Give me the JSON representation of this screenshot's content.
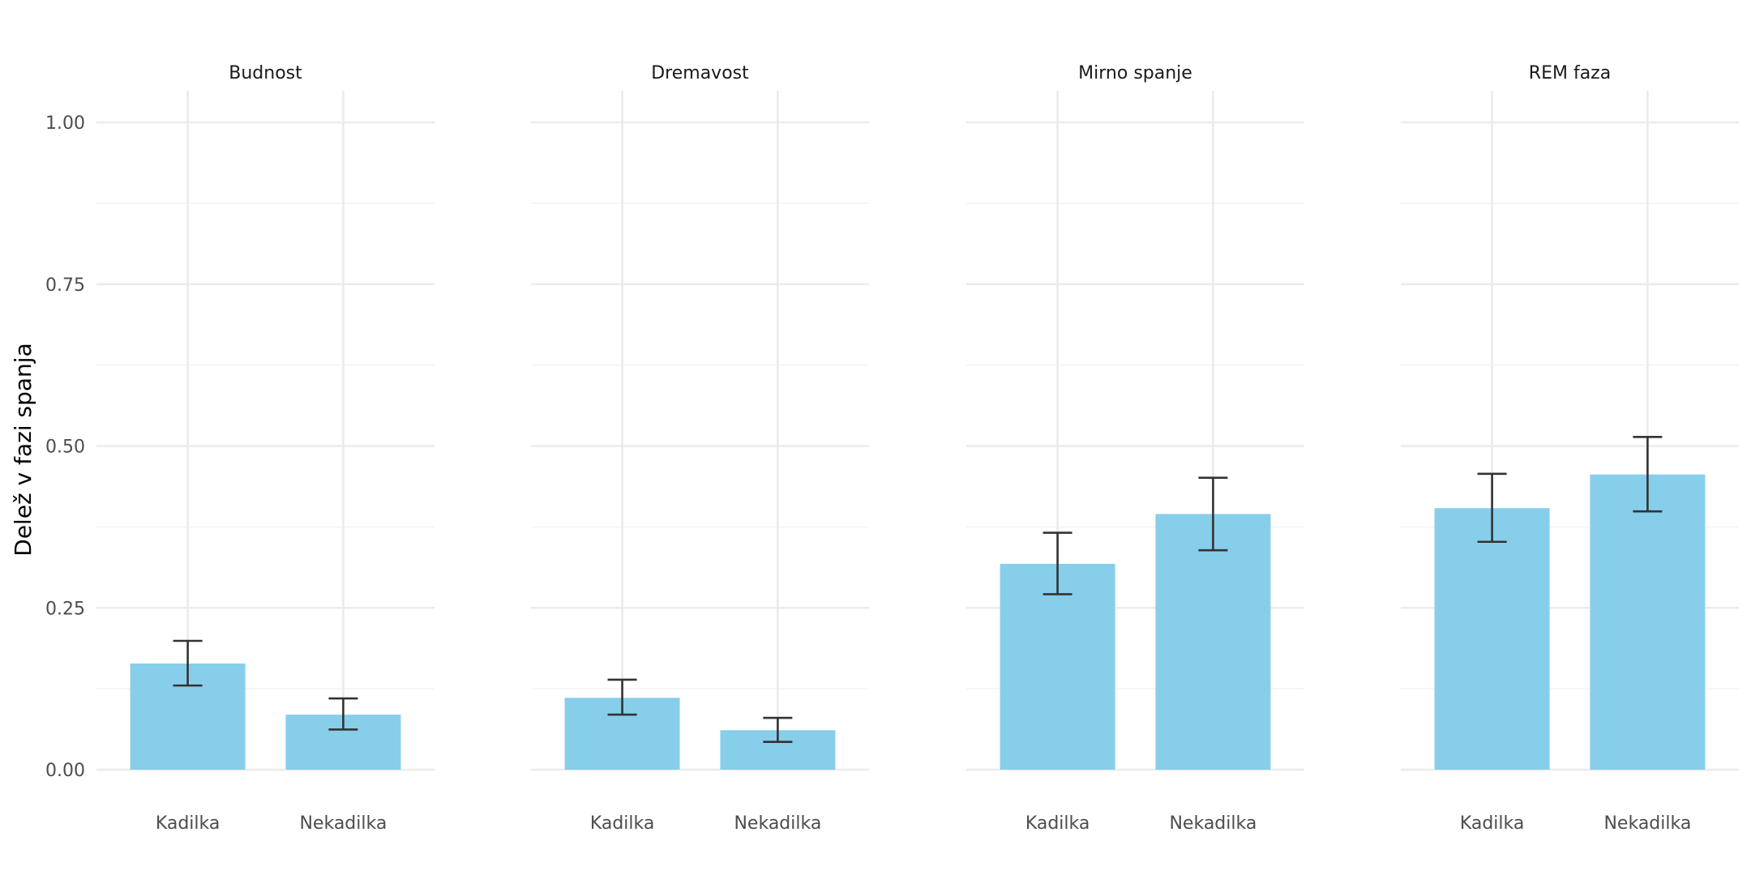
{
  "chart_data": {
    "type": "bar",
    "ylabel": "Delež v fazi spanja",
    "xlabel": "",
    "ylim": [
      0,
      1.05
    ],
    "yticks": [
      0.0,
      0.25,
      0.5,
      0.75,
      1.0
    ],
    "ytick_labels": [
      "0.00",
      "0.25",
      "0.50",
      "0.75",
      "1.00"
    ],
    "grid": true,
    "bar_color": "#87CEEB",
    "errorbar_color": "#333333",
    "categories": [
      "Kadilka",
      "Nekadilka"
    ],
    "facets": [
      {
        "title": "Budnost",
        "values": [
          0.164,
          0.085
        ],
        "lower": [
          0.13,
          0.062
        ],
        "upper": [
          0.199,
          0.11
        ]
      },
      {
        "title": "Dremavost",
        "values": [
          0.111,
          0.061
        ],
        "lower": [
          0.085,
          0.043
        ],
        "upper": [
          0.139,
          0.08
        ]
      },
      {
        "title": "Mirno spanje",
        "values": [
          0.318,
          0.395
        ],
        "lower": [
          0.271,
          0.339
        ],
        "upper": [
          0.366,
          0.451
        ]
      },
      {
        "title": "REM faza",
        "values": [
          0.404,
          0.456
        ],
        "lower": [
          0.352,
          0.399
        ],
        "upper": [
          0.457,
          0.514
        ]
      }
    ]
  }
}
